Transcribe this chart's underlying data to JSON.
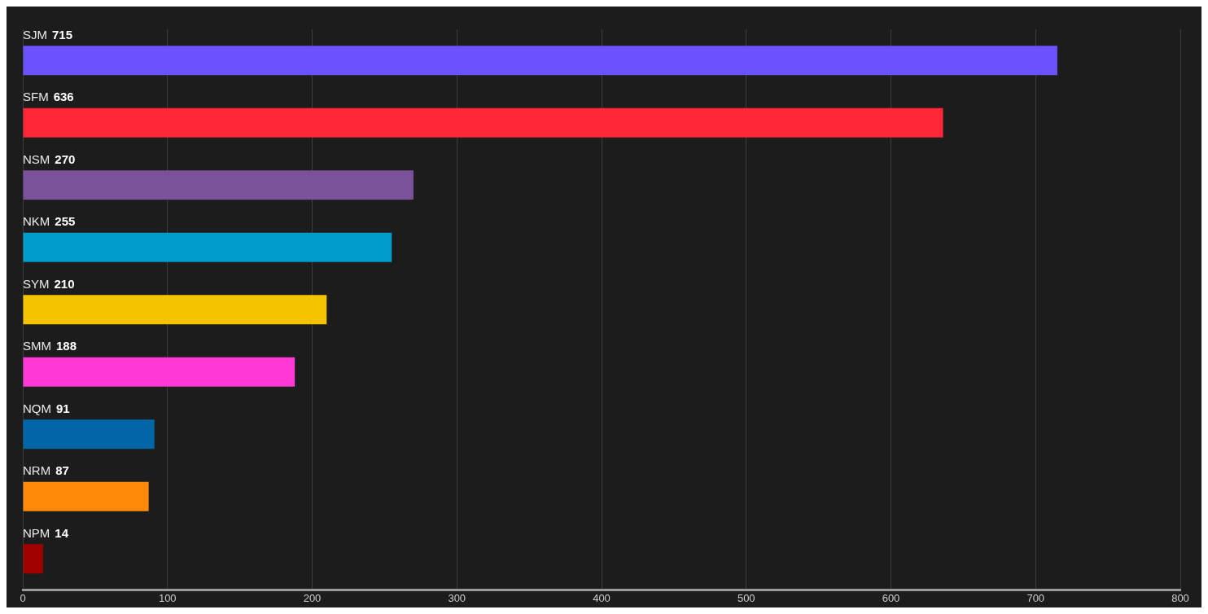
{
  "chart_data": {
    "type": "bar",
    "orientation": "horizontal",
    "categories": [
      "SJM",
      "SFM",
      "NSM",
      "NKM",
      "SYM",
      "SMM",
      "NQM",
      "NRM",
      "NPM"
    ],
    "values": [
      715,
      636,
      270,
      255,
      210,
      188,
      91,
      87,
      14
    ],
    "colors": [
      "#6b52ff",
      "#ff2638",
      "#7a5299",
      "#009bc9",
      "#f5c400",
      "#ff38d6",
      "#0066a8",
      "#ff8a0a",
      "#a00000"
    ],
    "xlim": [
      0,
      800
    ],
    "xticks": [
      0,
      100,
      200,
      300,
      400,
      500,
      600,
      700,
      800
    ],
    "grid": "x",
    "data_labels": true,
    "legend": false
  }
}
